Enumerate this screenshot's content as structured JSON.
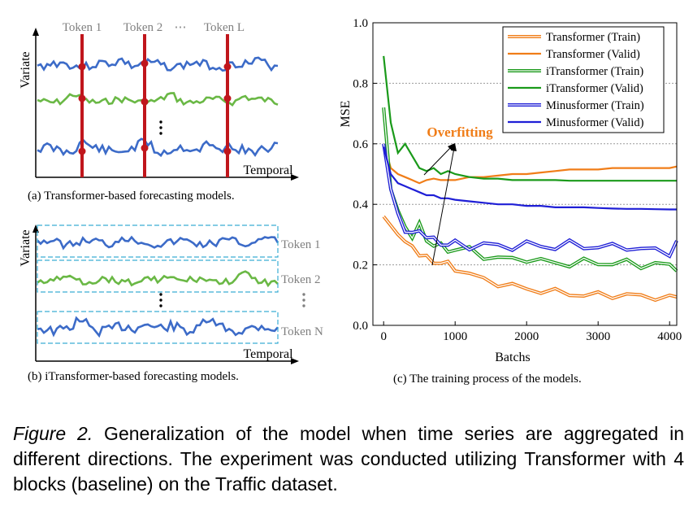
{
  "panel_a": {
    "tokens": [
      "Token 1",
      "Token 2",
      "⋯",
      "Token L"
    ],
    "ylabel": "Variate",
    "xlabel": "Temporal",
    "caption": "(a) Transformer-based forecasting models."
  },
  "panel_b": {
    "tokens": [
      "Token 1",
      "Token 2",
      "Token N"
    ],
    "ylabel": "Variate",
    "xlabel": "Temporal",
    "caption": "(b) iTransformer-based forecasting models."
  },
  "panel_c": {
    "caption": "(c) The training process of the models.",
    "annotation": "Overfitting"
  },
  "colors": {
    "transformer": "#f07d18",
    "itransformer": "#1a9a1a",
    "minusformer": "#1f1fd6",
    "line_blue": "#3c6bc8",
    "line_green": "#6ab845",
    "token_bar": "#c0161c",
    "dashed_box": "#3aaed4"
  },
  "chart_data": {
    "type": "line",
    "xlabel": "Batchs",
    "ylabel": "MSE",
    "xlim": [
      -150,
      4100
    ],
    "ylim": [
      0.0,
      1.0
    ],
    "xticks": [
      0,
      1000,
      2000,
      3000,
      4000
    ],
    "yticks": [
      0.0,
      0.2,
      0.4,
      0.6,
      0.8,
      1.0
    ],
    "grid": "horizontal-dotted",
    "legend_position": "top-right",
    "series": [
      {
        "name": "Transformer (Train)",
        "style": "double",
        "color": "#f07d18",
        "x": [
          0,
          100,
          200,
          300,
          400,
          500,
          600,
          700,
          800,
          900,
          1000,
          1200,
          1400,
          1600,
          1800,
          2000,
          2200,
          2400,
          2600,
          2800,
          3000,
          3200,
          3400,
          3600,
          3800,
          4000,
          4100
        ],
        "y": [
          0.36,
          0.33,
          0.3,
          0.27,
          0.26,
          0.24,
          0.22,
          0.21,
          0.21,
          0.2,
          0.19,
          0.17,
          0.15,
          0.14,
          0.13,
          0.12,
          0.115,
          0.11,
          0.105,
          0.1,
          0.1,
          0.1,
          0.1,
          0.095,
          0.095,
          0.09,
          0.095
        ]
      },
      {
        "name": "Transformer (Valid)",
        "style": "single",
        "color": "#f07d18",
        "x": [
          0,
          100,
          200,
          300,
          400,
          500,
          600,
          700,
          800,
          900,
          1000,
          1200,
          1400,
          1600,
          1800,
          2000,
          2200,
          2400,
          2600,
          2800,
          3000,
          3200,
          3400,
          3600,
          3800,
          4000,
          4100
        ],
        "y": [
          0.6,
          0.52,
          0.5,
          0.49,
          0.48,
          0.47,
          0.48,
          0.485,
          0.48,
          0.48,
          0.48,
          0.49,
          0.49,
          0.495,
          0.5,
          0.5,
          0.505,
          0.51,
          0.515,
          0.515,
          0.515,
          0.52,
          0.52,
          0.52,
          0.52,
          0.52,
          0.525
        ]
      },
      {
        "name": "iTransformer (Train)",
        "style": "double",
        "color": "#1a9a1a",
        "x": [
          0,
          100,
          200,
          300,
          400,
          500,
          600,
          700,
          800,
          900,
          1000,
          1200,
          1400,
          1600,
          1800,
          2000,
          2200,
          2400,
          2600,
          2800,
          3000,
          3200,
          3400,
          3600,
          3800,
          4000,
          4100
        ],
        "y": [
          0.72,
          0.45,
          0.38,
          0.32,
          0.3,
          0.33,
          0.28,
          0.27,
          0.26,
          0.25,
          0.25,
          0.25,
          0.23,
          0.22,
          0.22,
          0.22,
          0.21,
          0.21,
          0.2,
          0.21,
          0.21,
          0.2,
          0.21,
          0.2,
          0.2,
          0.2,
          0.19
        ]
      },
      {
        "name": "iTransformer (Valid)",
        "style": "single",
        "color": "#1a9a1a",
        "x": [
          0,
          100,
          200,
          300,
          400,
          500,
          600,
          700,
          800,
          900,
          1000,
          1200,
          1400,
          1600,
          1800,
          2000,
          2200,
          2400,
          2600,
          2800,
          3000,
          3200,
          3400,
          3600,
          3800,
          4000,
          4100
        ],
        "y": [
          0.89,
          0.67,
          0.57,
          0.6,
          0.56,
          0.52,
          0.51,
          0.52,
          0.5,
          0.51,
          0.5,
          0.49,
          0.485,
          0.485,
          0.48,
          0.48,
          0.48,
          0.48,
          0.478,
          0.478,
          0.478,
          0.478,
          0.478,
          0.478,
          0.478,
          0.478,
          0.478
        ]
      },
      {
        "name": "Minusformer (Train)",
        "style": "double",
        "color": "#1f1fd6",
        "x": [
          0,
          100,
          200,
          300,
          400,
          500,
          600,
          700,
          800,
          900,
          1000,
          1200,
          1400,
          1600,
          1800,
          2000,
          2200,
          2400,
          2600,
          2800,
          3000,
          3200,
          3400,
          3600,
          3800,
          4000,
          4100
        ],
        "y": [
          0.6,
          0.45,
          0.37,
          0.32,
          0.3,
          0.31,
          0.3,
          0.28,
          0.27,
          0.27,
          0.27,
          0.26,
          0.27,
          0.26,
          0.26,
          0.27,
          0.26,
          0.26,
          0.27,
          0.26,
          0.26,
          0.26,
          0.26,
          0.25,
          0.25,
          0.24,
          0.27
        ]
      },
      {
        "name": "Minusformer (Valid)",
        "style": "single",
        "color": "#1f1fd6",
        "x": [
          0,
          100,
          200,
          300,
          400,
          500,
          600,
          700,
          800,
          900,
          1000,
          1200,
          1400,
          1600,
          1800,
          2000,
          2200,
          2400,
          2600,
          2800,
          3000,
          3200,
          3400,
          3600,
          3800,
          4000,
          4100
        ],
        "y": [
          0.59,
          0.5,
          0.47,
          0.46,
          0.45,
          0.44,
          0.43,
          0.43,
          0.42,
          0.42,
          0.415,
          0.41,
          0.405,
          0.4,
          0.4,
          0.395,
          0.395,
          0.39,
          0.39,
          0.39,
          0.388,
          0.386,
          0.385,
          0.385,
          0.384,
          0.383,
          0.383
        ]
      }
    ]
  },
  "figure_caption": {
    "label": "Figure 2.",
    "text": " Generalization of the model when time series are aggregated in different directions. The experiment was conducted utilizing Transformer with 4 blocks (baseline) on the Traffic dataset."
  }
}
